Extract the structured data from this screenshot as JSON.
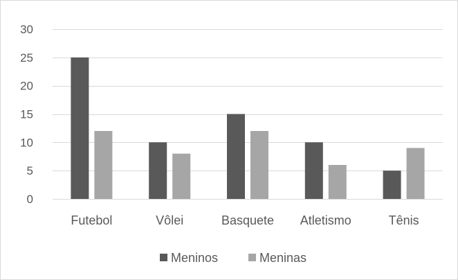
{
  "chart_data": {
    "type": "bar",
    "title": "",
    "xlabel": "",
    "ylabel": "",
    "categories": [
      "Futebol",
      "Vôlei",
      "Basquete",
      "Atletismo",
      "Tênis"
    ],
    "series": [
      {
        "name": "Meninos",
        "values": [
          25,
          10,
          15,
          10,
          5
        ],
        "color": "#595959"
      },
      {
        "name": "Meninas",
        "values": [
          12,
          8,
          12,
          6,
          9
        ],
        "color": "#a6a6a6"
      }
    ],
    "ylim": [
      0,
      30
    ],
    "yticks": [
      0,
      5,
      10,
      15,
      20,
      25,
      30
    ],
    "grid": true,
    "legend_position": "bottom",
    "colors": {
      "gridline": "#d9d9d9",
      "text": "#595959",
      "border": "#d9d9d9"
    }
  }
}
